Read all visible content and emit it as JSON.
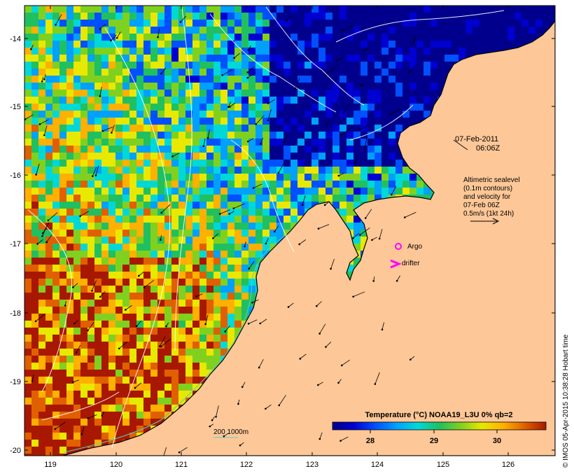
{
  "map": {
    "axes": {
      "lon_ticks": [
        "119",
        "120",
        "121",
        "122",
        "123",
        "124",
        "125",
        "126"
      ],
      "lat_ticks": [
        "-14",
        "-15",
        "-16",
        "-17",
        "-18",
        "-19",
        "-20"
      ]
    },
    "annotations": {
      "date": "07-Feb-2011",
      "time": "06:06Z",
      "altimetry": [
        "Altimetric sealevel",
        "(0.1m contours)",
        "and velocity for",
        "07-Feb 06Z",
        "0.5m/s (1kt 24h)"
      ],
      "argo_label": "Argo",
      "drifter_label": "drifter",
      "depth_contours_label": "200  1000m"
    },
    "colorbar": {
      "title": "Temperature (°C) NOAA19_L3U 0% qb=2",
      "ticks": [
        "28",
        "29",
        "30"
      ]
    },
    "credit": "© IMOS 05-Apr-2015 10:38:28 Hobart time",
    "colors": {
      "land": "#fdc797",
      "argo": "#ff00ff",
      "drifter": "#ff00ff",
      "depth_line": "#55cccc",
      "sst_scale": [
        "#00008c",
        "#0000d0",
        "#0050ff",
        "#00a0ff",
        "#00d8d8",
        "#20c060",
        "#80d020",
        "#e8e800",
        "#ffb000",
        "#e06000",
        "#a81800"
      ]
    }
  }
}
